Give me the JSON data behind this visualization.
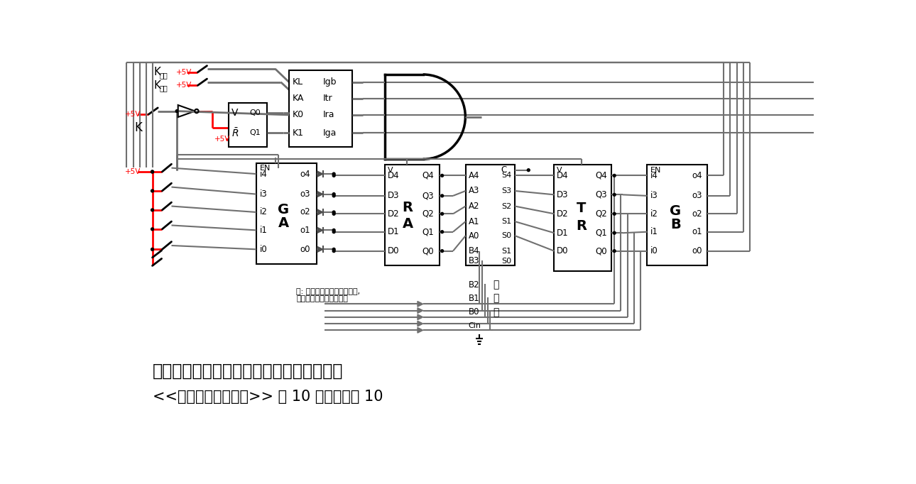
{
  "title": "使用循环移位寄存器来简化装载和相加过程",
  "subtitle": "<<穿越计算机的迷雾>> 第 10 章示例电路 10",
  "background": "#ffffff",
  "note_line1": "注: 因实现层面上的一些缺陷,",
  "note_line2": "此处加入二极管防止倒流",
  "gray": "#707070",
  "red": "#ff0000",
  "black": "#000000"
}
